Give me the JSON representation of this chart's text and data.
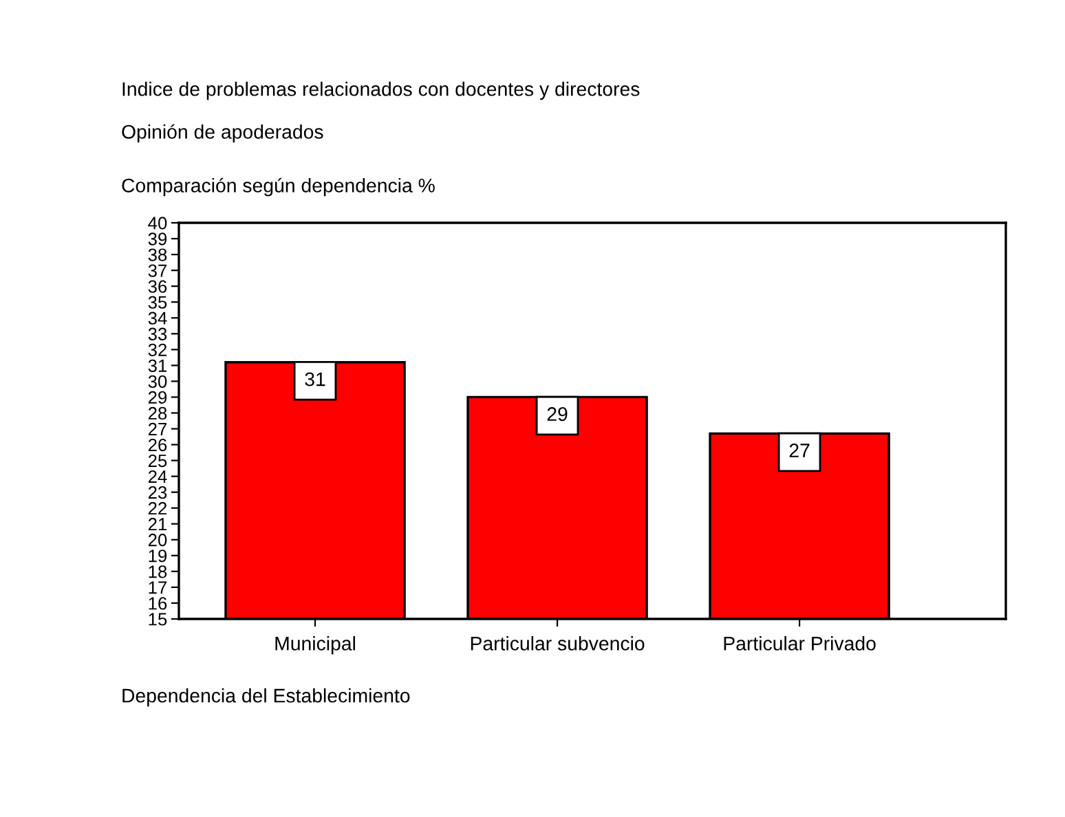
{
  "chart_data": {
    "type": "bar",
    "title": "Indice de problemas relacionados con docentes y directores",
    "subtitle": "Opinión de apoderados",
    "ylabel": "Comparación según dependencia %",
    "xlabel": "Dependencia del Establecimiento",
    "categories": [
      "Municipal",
      "Particular subvencio",
      "Particular Privado"
    ],
    "values": [
      31.2,
      29.0,
      26.7
    ],
    "color": "#ff0000",
    "value_labels": [
      "31",
      "29",
      "27"
    ],
    "ylim": [
      15,
      40
    ],
    "yticks": [
      15,
      16,
      17,
      18,
      19,
      20,
      21,
      22,
      23,
      24,
      25,
      26,
      27,
      28,
      29,
      30,
      31,
      32,
      33,
      34,
      35,
      36,
      37,
      38,
      39,
      40
    ]
  }
}
